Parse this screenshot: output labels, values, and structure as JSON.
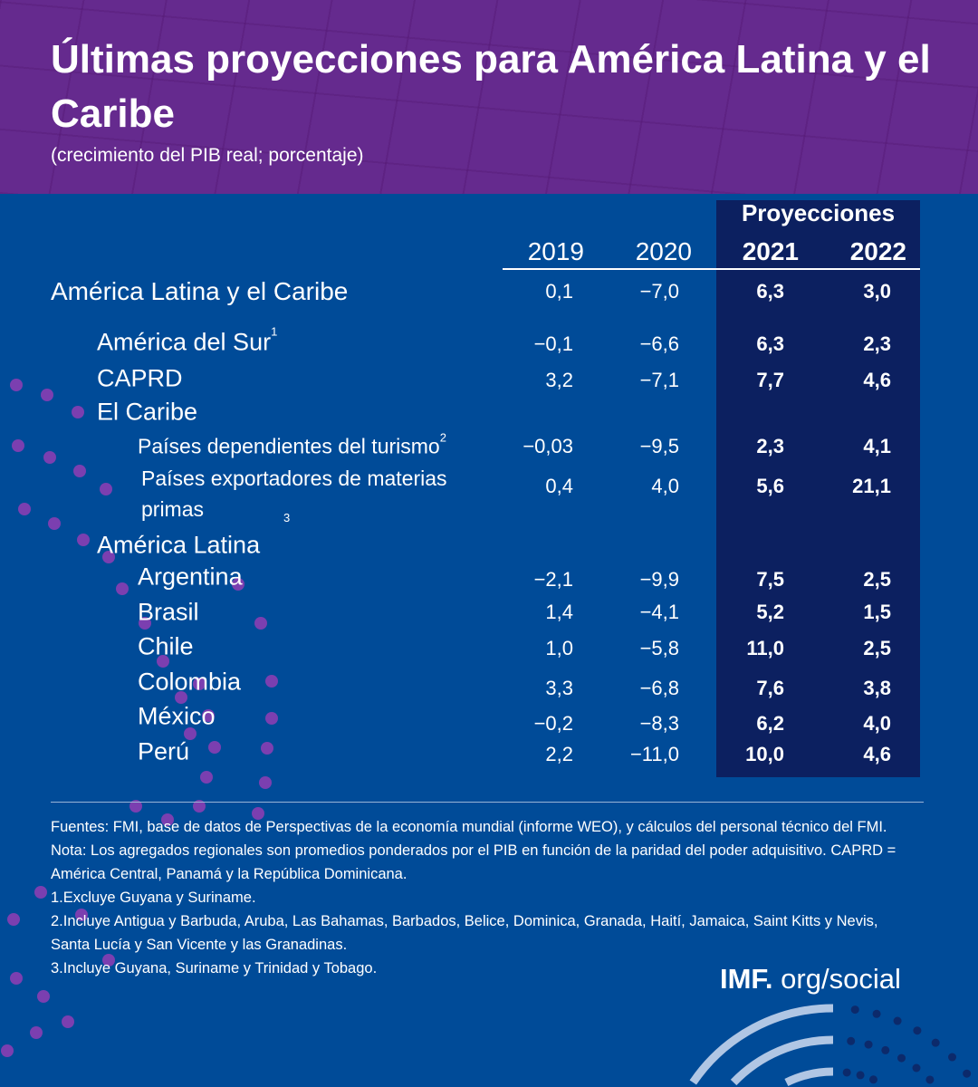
{
  "header": {
    "title": "Últimas proyecciones para América Latina y el Caribe",
    "subtitle": "(crecimiento del PIB real; porcentaje)"
  },
  "colors": {
    "header_bg": "#652a8e",
    "body_bg": "#004b98",
    "projection_bg": "#0c2060",
    "dots": "#7b3fb0"
  },
  "chart_data": {
    "type": "table",
    "group_header": "Proyecciones",
    "columns": [
      "2019",
      "2020",
      "2021",
      "2022"
    ],
    "rows": [
      {
        "label": "América Latina y el Caribe",
        "sup": "",
        "values": [
          "0,1",
          "−7,0",
          "6,3",
          "3,0"
        ]
      },
      {
        "label": "América del Sur",
        "sup": "1",
        "values": [
          "−0,1",
          "−6,6",
          "6,3",
          "2,3"
        ]
      },
      {
        "label": "CAPRD",
        "sup": "",
        "values": [
          "3,2",
          "−7,1",
          "7,7",
          "4,6"
        ]
      },
      {
        "label": "El Caribe",
        "sup": "",
        "values": []
      },
      {
        "label": "Países dependientes del turismo",
        "sup": "2",
        "values": [
          "−0,03",
          "−9,5",
          "2,3",
          "4,1"
        ]
      },
      {
        "label": "Países exportadores de materias primas",
        "sup": "3",
        "values": [
          "0,4",
          "4,0",
          "5,6",
          "21,1"
        ]
      },
      {
        "label": "América Latina",
        "sup": "",
        "values": []
      },
      {
        "label": "Argentina",
        "sup": "",
        "values": [
          "−2,1",
          "−9,9",
          "7,5",
          "2,5"
        ]
      },
      {
        "label": "Brasil",
        "sup": "",
        "values": [
          "1,4",
          "−4,1",
          "5,2",
          "1,5"
        ]
      },
      {
        "label": "Chile",
        "sup": "",
        "values": [
          "1,0",
          "−5,8",
          "11,0",
          "2,5"
        ]
      },
      {
        "label": "Colombia",
        "sup": "",
        "values": [
          "3,3",
          "−6,8",
          "7,6",
          "3,8"
        ]
      },
      {
        "label": "México",
        "sup": "",
        "values": [
          "−0,2",
          "−8,3",
          "6,2",
          "4,0"
        ]
      },
      {
        "label": "Perú",
        "sup": "",
        "values": [
          "2,2",
          "−11,0",
          "10,0",
          "4,6"
        ]
      }
    ]
  },
  "notes": [
    "Fuentes: FMI, base de datos de Perspectivas de la economía mundial (informe WEO), y cálculos del personal técnico del FMI.",
    "Nota: Los agregados regionales son promedios ponderados por el PIB en función de la paridad del poder adquisitivo. CAPRD = América Central, Panamá y la República Dominicana.",
    "1.Excluye Guyana y Suriname.",
    "2.Incluye Antigua y Barbuda, Aruba, Las Bahamas, Barbados, Belice, Dominica, Granada, Haití, Jamaica, Saint Kitts y Nevis, Santa Lucía y San Vicente y las Granadinas.",
    "3.Incluye Guyana, Suriname y Trinidad y Tobago."
  ],
  "brand": {
    "bold": "IMF.",
    "rest": " org/social"
  }
}
